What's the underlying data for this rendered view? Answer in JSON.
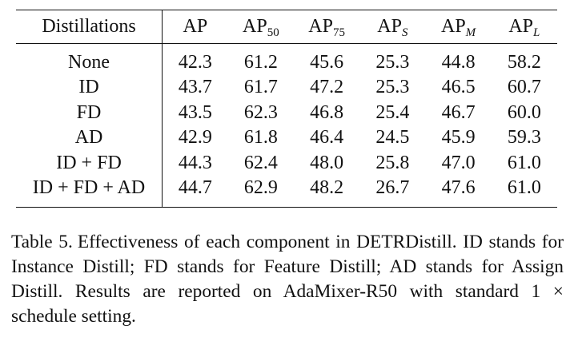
{
  "table": {
    "headers": {
      "distillations": "Distillations",
      "ap": "AP",
      "ap50_base": "AP",
      "ap50_sub": "50",
      "ap75_base": "AP",
      "ap75_sub": "75",
      "aps_base": "AP",
      "aps_sub": "S",
      "apm_base": "AP",
      "apm_sub": "M",
      "apl_base": "AP",
      "apl_sub": "L"
    },
    "rows": [
      {
        "name": "None",
        "ap": "42.3",
        "ap50": "61.2",
        "ap75": "45.6",
        "aps": "25.3",
        "apm": "44.8",
        "apl": "58.2"
      },
      {
        "name": "ID",
        "ap": "43.7",
        "ap50": "61.7",
        "ap75": "47.2",
        "aps": "25.3",
        "apm": "46.5",
        "apl": "60.7"
      },
      {
        "name": "FD",
        "ap": "43.5",
        "ap50": "62.3",
        "ap75": "46.8",
        "aps": "25.4",
        "apm": "46.7",
        "apl": "60.0"
      },
      {
        "name": "AD",
        "ap": "42.9",
        "ap50": "61.8",
        "ap75": "46.4",
        "aps": "24.5",
        "apm": "45.9",
        "apl": "59.3"
      },
      {
        "name": "ID + FD",
        "ap": "44.3",
        "ap50": "62.4",
        "ap75": "48.0",
        "aps": "25.8",
        "apm": "47.0",
        "apl": "61.0"
      },
      {
        "name": "ID + FD + AD",
        "ap": "44.7",
        "ap50": "62.9",
        "ap75": "48.2",
        "aps": "26.7",
        "apm": "47.6",
        "apl": "61.0"
      }
    ]
  },
  "caption": {
    "label": "Table 5.",
    "text": "Effectiveness of each component in DETRDistill. ID stands for Instance Distill; FD stands for Feature Distill; AD stands for Assign Distill. Results are reported on AdaMixer-R50 with standard 1 × schedule setting."
  }
}
